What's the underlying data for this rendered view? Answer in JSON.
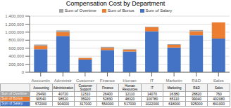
{
  "chart_data": {
    "type": "bar",
    "stacked": true,
    "title": "Compensation Cost by Department",
    "categories": [
      "Accountin\ng",
      "Administr\nation",
      "Customer\nSupport",
      "Finance",
      "Human\nResources",
      "IT",
      "Marketin\ng",
      "R&D",
      "Sales"
    ],
    "series": [
      {
        "name": "Sum of Salary",
        "color": "#4472C4",
        "values": [
          572000,
          904000,
          317000,
          554000,
          517000,
          1022000,
          618000,
          925000,
          841000
        ]
      },
      {
        "name": "Sum of Bonus",
        "color": "#ED7D31",
        "values": [
          90540,
          98520,
          35920,
          52830,
          48320,
          100780,
          65110,
          99040,
          402080
        ]
      },
      {
        "name": "Sum of Overtime",
        "color": "#A5A5A5",
        "values": [
          29490,
          40720,
          12310,
          26400,
          12110,
          14070,
          16380,
          28820,
          760
        ]
      }
    ],
    "ylim": [
      0,
      1400000
    ],
    "yticks": [
      0,
      {
        "value": 200000,
        "label": "200,000"
      },
      {
        "value": 400000,
        "label": "400,000"
      },
      {
        "value": 600000,
        "label": "600,000"
      },
      {
        "value": 800000,
        "label": "800,000"
      },
      {
        "value": 1000000,
        "label": "1,000,000"
      },
      {
        "value": 1200000,
        "label": "1,200,000"
      },
      {
        "value": 1400000,
        "label": "1,400,000"
      }
    ],
    "grid": true,
    "legend": "top",
    "table": {
      "columns": [
        "Accounting",
        "Administration",
        "Customer\nSupport",
        "Finance",
        "Human\nResources",
        "IT",
        "Marketing",
        "R&D",
        "Sales"
      ]
    }
  }
}
